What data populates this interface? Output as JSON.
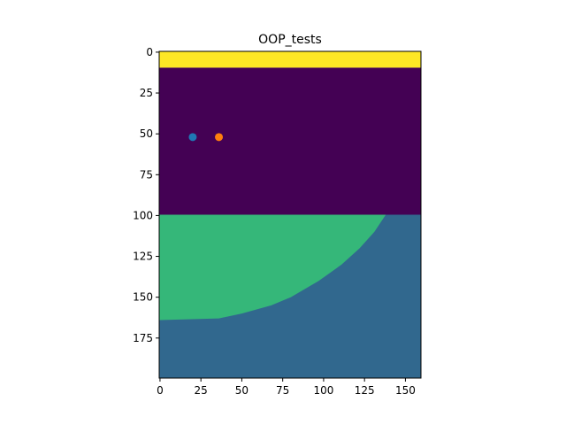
{
  "chart_data": {
    "type": "heatmap",
    "title": "OOP_tests",
    "xlabel": "",
    "ylabel": "",
    "xlim": [
      -0.5,
      159.5
    ],
    "ylim": [
      199.5,
      -0.5
    ],
    "y_inverted": true,
    "grid": false,
    "legend": "none",
    "x_ticks": [
      0,
      25,
      50,
      75,
      100,
      125,
      150
    ],
    "y_ticks": [
      0,
      25,
      50,
      75,
      100,
      125,
      150,
      175
    ],
    "image": {
      "width": 160,
      "height": 200,
      "colormap": "viridis",
      "regions": [
        {
          "name": "top band",
          "y_range": [
            0,
            9
          ],
          "color": "#fde725"
        },
        {
          "name": "upper region",
          "y_range": [
            10,
            99
          ],
          "color": "#440154"
        },
        {
          "name": "lower-left region",
          "y_range": [
            100,
            164
          ],
          "color": "#35b779",
          "boundary_x_at_rows": [
            [
              100,
              138
            ],
            [
              110,
              131
            ],
            [
              120,
              122
            ],
            [
              130,
              111
            ],
            [
              140,
              97
            ],
            [
              150,
              80
            ],
            [
              155,
              68
            ],
            [
              160,
              50
            ],
            [
              163,
              36
            ],
            [
              164,
              0
            ]
          ]
        },
        {
          "name": "lower region",
          "y_range": [
            100,
            199
          ],
          "color": "#31688e"
        }
      ]
    },
    "series": [
      {
        "type": "scatter",
        "x": [
          20
        ],
        "y": [
          52
        ],
        "color": "#1f77b4"
      },
      {
        "type": "scatter",
        "x": [
          36
        ],
        "y": [
          52
        ],
        "color": "#ff7f0e"
      }
    ]
  }
}
